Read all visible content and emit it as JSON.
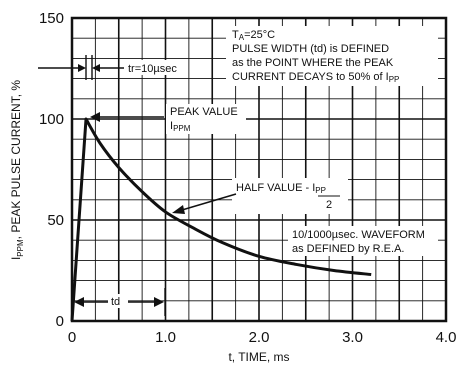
{
  "chart_data": {
    "type": "line",
    "xlabel": "t, TIME, ms",
    "ylabel_main": "I",
    "ylabel_sub": "PPM",
    "ylabel_rest": ", PEAK PULSE CURRENT, %",
    "xlim": [
      0,
      4.0
    ],
    "ylim": [
      0,
      150
    ],
    "x_ticks": [
      "0",
      "1.0",
      "2.0",
      "3.0",
      "4.0"
    ],
    "y_ticks": [
      "0",
      "50",
      "100",
      "150"
    ],
    "grid": true,
    "series": [
      {
        "x": [
          0,
          0.15,
          0.3,
          0.5,
          0.75,
          1.0,
          1.3,
          1.6,
          2.0,
          2.4,
          2.8,
          3.2
        ],
        "y": [
          0,
          100,
          88,
          76,
          64,
          54,
          46,
          39,
          32,
          28,
          25,
          23
        ]
      }
    ],
    "annotations": {
      "ta_prefix": "T",
      "ta_sub": "A",
      "ta_value": "=25°C",
      "pulse_line1": "PULSE WIDTH (td) is DEFINED",
      "pulse_line2": "as the POINT WHERE the PEAK",
      "pulse_line3_prefix": "CURRENT DECAYS to 50% of I",
      "pulse_line3_sub": "PP",
      "tr_label": "tr=10µsec",
      "peak_line1": "PEAK VALUE",
      "peak_line2_main": "I",
      "peak_line2_sub": "PPM",
      "half_prefix": "HALF VALUE - ",
      "half_num_main": "I",
      "half_num_sub": "PP",
      "half_den": "2",
      "waveform_line1": "10/1000µsec. WAVEFORM",
      "waveform_line2": "as DEFINED by R.E.A.",
      "td_label": "td"
    }
  }
}
